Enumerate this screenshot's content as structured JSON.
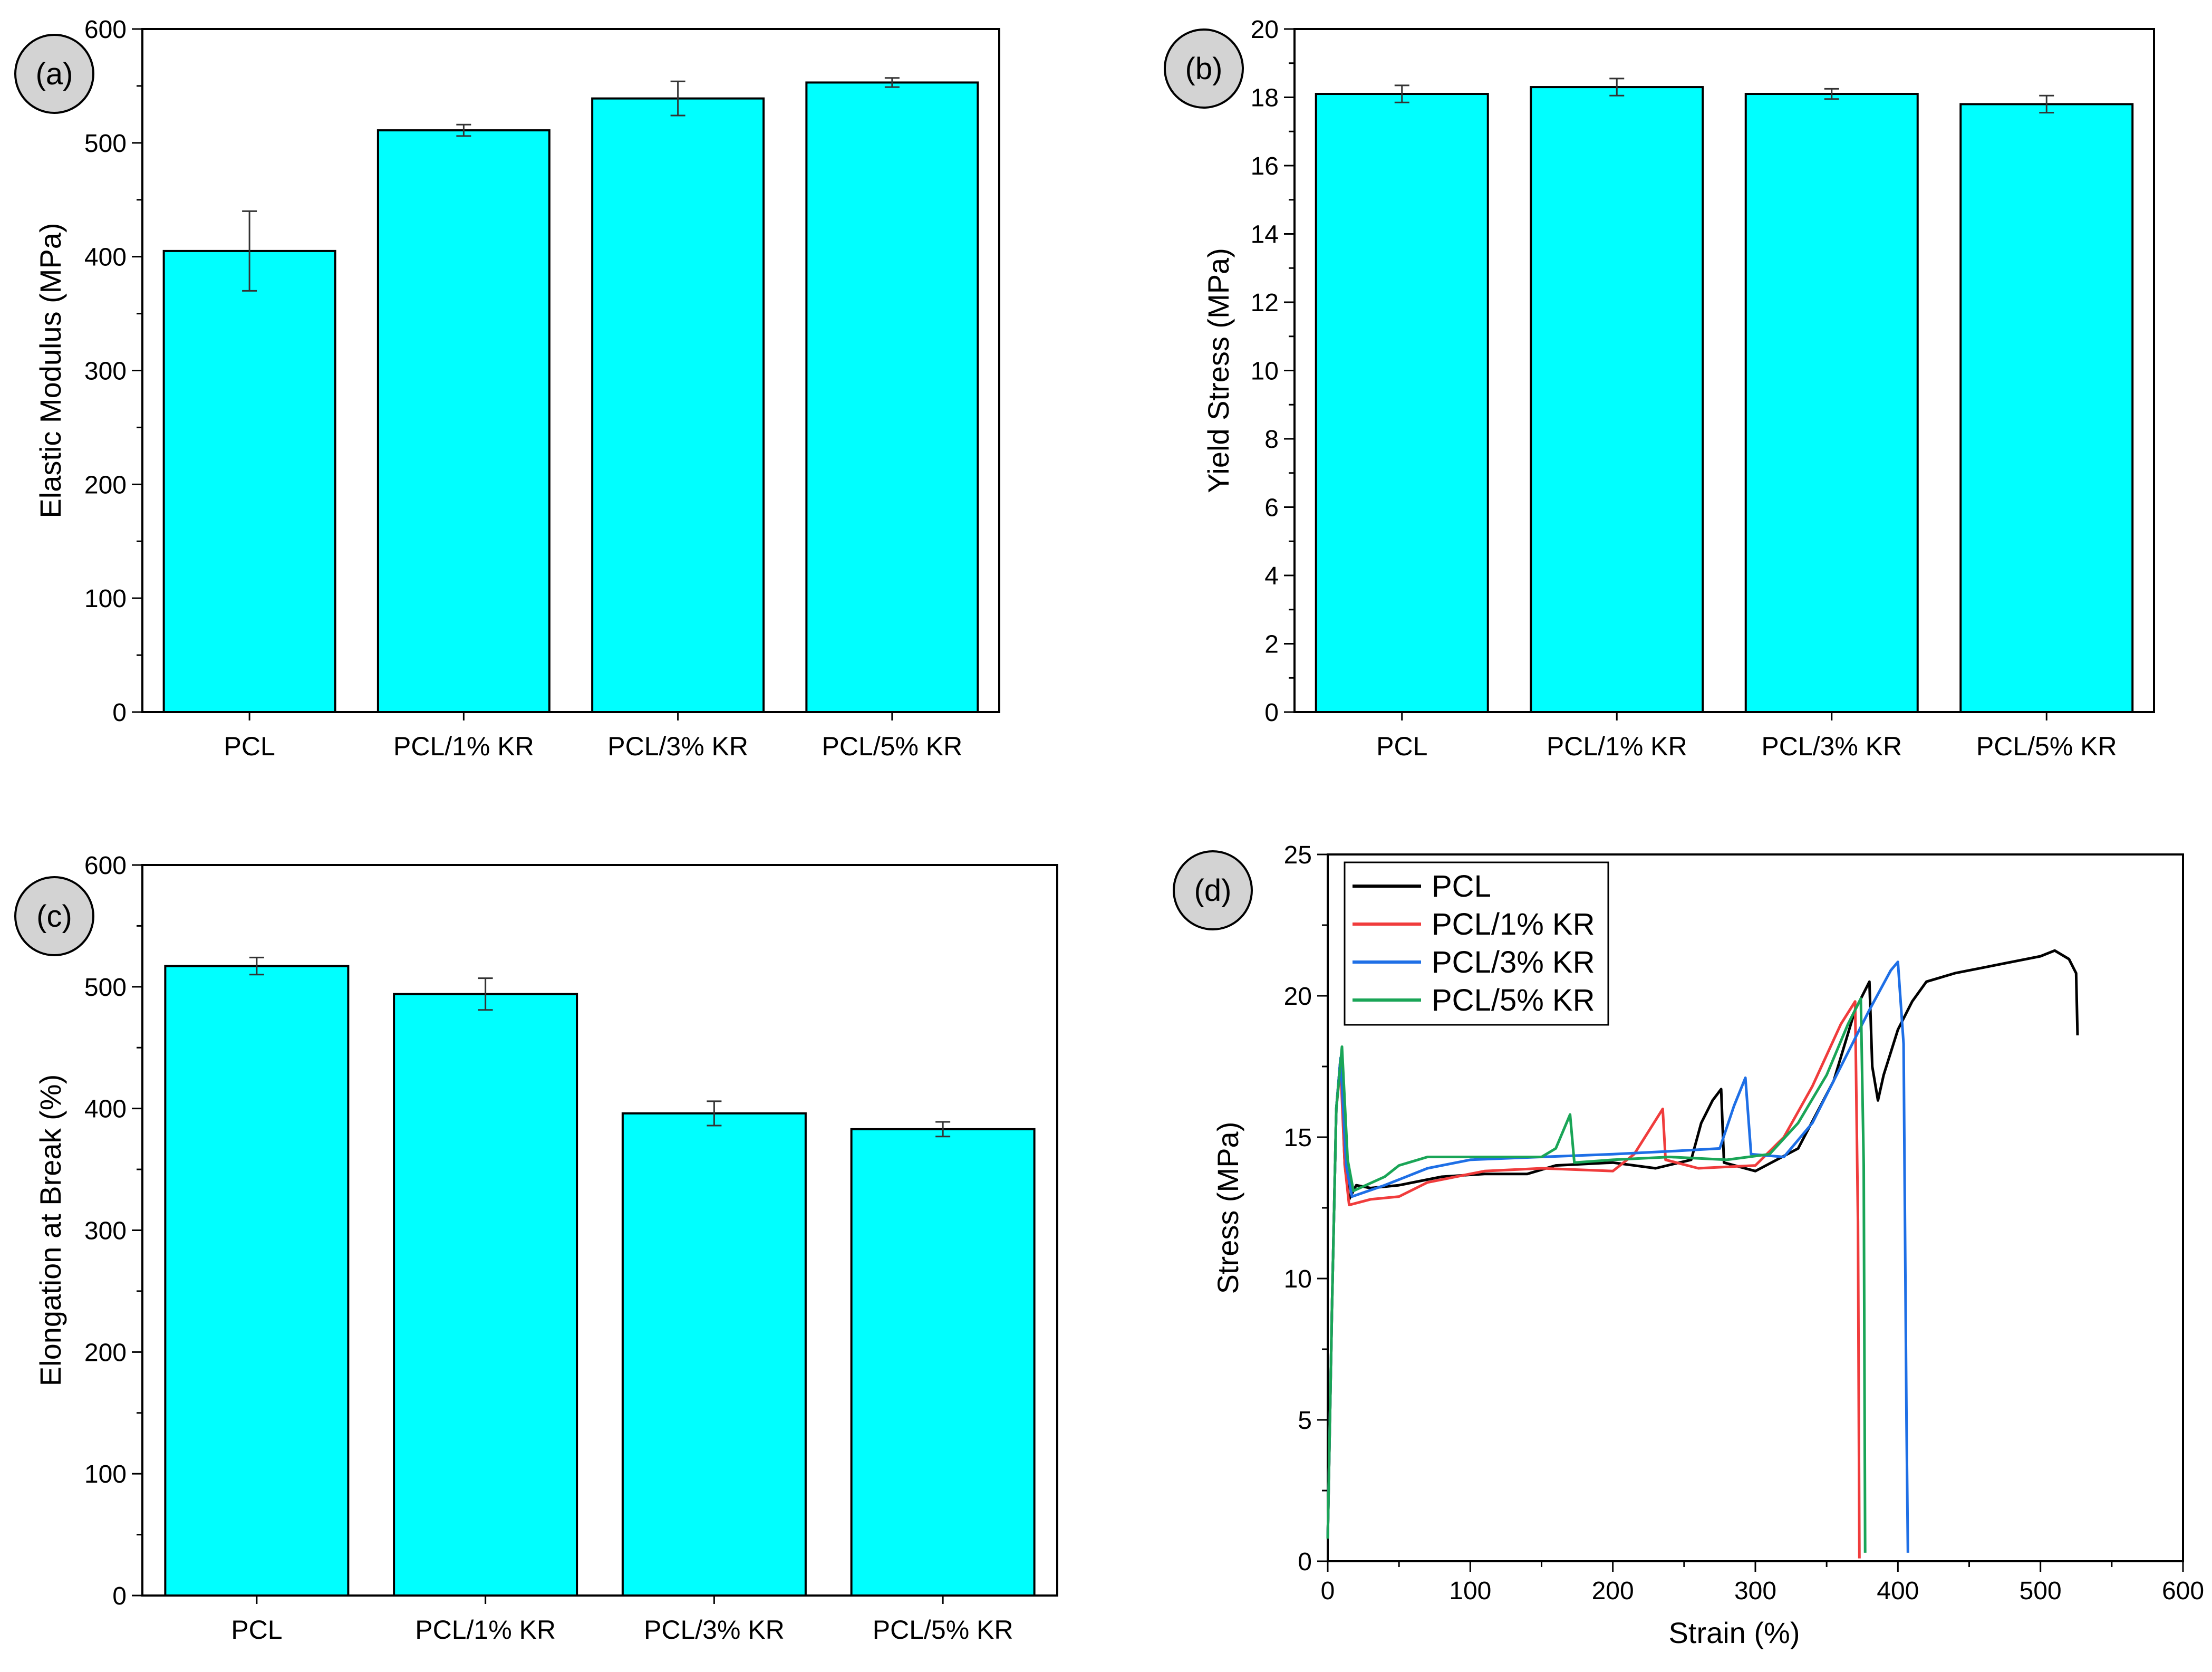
{
  "colors": {
    "bar_fill": "#00FFFF",
    "bar_stroke": "#000000",
    "panel_badge": "#D3D3D3"
  },
  "chart_data": [
    {
      "id": "a",
      "type": "bar",
      "panel_label": "(a)",
      "categories": [
        "PCL",
        "PCL/1% KR",
        "PCL/3% KR",
        "PCL/5% KR"
      ],
      "values": [
        405,
        511,
        539,
        553
      ],
      "errors": [
        35,
        5,
        15,
        4
      ],
      "ylabel": "Elastic Modulus (MPa)",
      "xlabel": "",
      "ylim": [
        0,
        600
      ],
      "yticks": [
        "0",
        "100",
        "200",
        "300",
        "400",
        "500",
        "600"
      ]
    },
    {
      "id": "b",
      "type": "bar",
      "panel_label": "(b)",
      "categories": [
        "PCL",
        "PCL/1% KR",
        "PCL/3% KR",
        "PCL/5% KR"
      ],
      "values": [
        18.1,
        18.3,
        18.1,
        17.8
      ],
      "errors": [
        0.25,
        0.25,
        0.15,
        0.25
      ],
      "ylabel": "Yield Stress (MPa)",
      "xlabel": "",
      "ylim": [
        0,
        20
      ],
      "yticks": [
        "0",
        "2",
        "4",
        "6",
        "8",
        "10",
        "12",
        "14",
        "16",
        "18",
        "20"
      ]
    },
    {
      "id": "c",
      "type": "bar",
      "panel_label": "(c)",
      "categories": [
        "PCL",
        "PCL/1% KR",
        "PCL/3% KR",
        "PCL/5% KR"
      ],
      "values": [
        517,
        494,
        396,
        383
      ],
      "errors": [
        7,
        13,
        10,
        6
      ],
      "ylabel": "Elongation at Break (%)",
      "xlabel": "",
      "ylim": [
        0,
        600
      ],
      "yticks": [
        "0",
        "100",
        "200",
        "300",
        "400",
        "500",
        "600"
      ]
    },
    {
      "id": "d",
      "type": "line",
      "panel_label": "(d)",
      "xlabel": "Strain (%)",
      "ylabel": "Stress (MPa)",
      "xlim": [
        0,
        600
      ],
      "ylim": [
        0,
        25
      ],
      "xticks": [
        "0",
        "100",
        "200",
        "300",
        "400",
        "500",
        "600"
      ],
      "yticks": [
        "0",
        "5",
        "10",
        "15",
        "20",
        "25"
      ],
      "legend_position": "top-left",
      "series": [
        {
          "name": "PCL",
          "color": "#000000",
          "points": [
            [
              0,
              0.8
            ],
            [
              3,
              9
            ],
            [
              6,
              16
            ],
            [
              9,
              17.8
            ],
            [
              12,
              14
            ],
            [
              15,
              12.8
            ],
            [
              20,
              13.3
            ],
            [
              30,
              13.2
            ],
            [
              50,
              13.3
            ],
            [
              80,
              13.6
            ],
            [
              110,
              13.7
            ],
            [
              140,
              13.7
            ],
            [
              160,
              14.0
            ],
            [
              200,
              14.1
            ],
            [
              230,
              13.9
            ],
            [
              255,
              14.2
            ],
            [
              262,
              15.5
            ],
            [
              270,
              16.3
            ],
            [
              276,
              16.7
            ],
            [
              278,
              14.1
            ],
            [
              300,
              13.8
            ],
            [
              330,
              14.6
            ],
            [
              355,
              17
            ],
            [
              370,
              19.5
            ],
            [
              380,
              20.5
            ],
            [
              382,
              17.5
            ],
            [
              386,
              16.3
            ],
            [
              390,
              17.2
            ],
            [
              395,
              18.0
            ],
            [
              400,
              18.8
            ],
            [
              410,
              19.8
            ],
            [
              420,
              20.5
            ],
            [
              440,
              20.8
            ],
            [
              460,
              21.0
            ],
            [
              480,
              21.2
            ],
            [
              500,
              21.4
            ],
            [
              510,
              21.6
            ],
            [
              520,
              21.3
            ],
            [
              525,
              20.8
            ],
            [
              526,
              18.6
            ]
          ]
        },
        {
          "name": "PCL/1% KR",
          "color": "#F03C3C",
          "points": [
            [
              0,
              0.8
            ],
            [
              3,
              9
            ],
            [
              6,
              16
            ],
            [
              9,
              17.5
            ],
            [
              12,
              14
            ],
            [
              15,
              12.6
            ],
            [
              30,
              12.8
            ],
            [
              50,
              12.9
            ],
            [
              70,
              13.4
            ],
            [
              90,
              13.6
            ],
            [
              110,
              13.8
            ],
            [
              150,
              13.9
            ],
            [
              200,
              13.8
            ],
            [
              215,
              14.4
            ],
            [
              225,
              15.2
            ],
            [
              235,
              16.0
            ],
            [
              237,
              14.2
            ],
            [
              260,
              13.9
            ],
            [
              300,
              14.0
            ],
            [
              320,
              15
            ],
            [
              340,
              16.8
            ],
            [
              360,
              19
            ],
            [
              370,
              19.8
            ],
            [
              372,
              12
            ],
            [
              373,
              0.1
            ]
          ]
        },
        {
          "name": "PCL/3% KR",
          "color": "#1E6FE6",
          "points": [
            [
              0,
              0.8
            ],
            [
              3,
              9
            ],
            [
              6,
              16
            ],
            [
              9,
              17.8
            ],
            [
              13,
              14
            ],
            [
              17,
              12.9
            ],
            [
              40,
              13.3
            ],
            [
              70,
              13.9
            ],
            [
              100,
              14.2
            ],
            [
              150,
              14.3
            ],
            [
              200,
              14.4
            ],
            [
              240,
              14.5
            ],
            [
              275,
              14.6
            ],
            [
              285,
              16.1
            ],
            [
              293,
              17.1
            ],
            [
              297,
              14.4
            ],
            [
              320,
              14.3
            ],
            [
              340,
              15.5
            ],
            [
              360,
              17.5
            ],
            [
              380,
              19.5
            ],
            [
              395,
              20.9
            ],
            [
              400,
              21.2
            ],
            [
              404,
              18.3
            ],
            [
              406,
              5
            ],
            [
              407,
              0.3
            ]
          ]
        },
        {
          "name": "PCL/5% KR",
          "color": "#1AA557",
          "points": [
            [
              0,
              0.8
            ],
            [
              3,
              9
            ],
            [
              6,
              16
            ],
            [
              10,
              18.2
            ],
            [
              14,
              14.2
            ],
            [
              18,
              13.1
            ],
            [
              40,
              13.6
            ],
            [
              50,
              14.0
            ],
            [
              70,
              14.3
            ],
            [
              100,
              14.3
            ],
            [
              150,
              14.3
            ],
            [
              160,
              14.6
            ],
            [
              170,
              15.8
            ],
            [
              173,
              14.1
            ],
            [
              200,
              14.2
            ],
            [
              240,
              14.3
            ],
            [
              280,
              14.2
            ],
            [
              310,
              14.4
            ],
            [
              330,
              15.5
            ],
            [
              350,
              17.2
            ],
            [
              365,
              19
            ],
            [
              374,
              19.9
            ],
            [
              376,
              14
            ],
            [
              377,
              0.3
            ]
          ]
        }
      ]
    }
  ]
}
